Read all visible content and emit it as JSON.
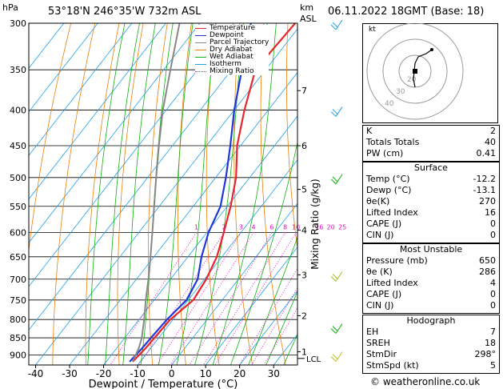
{
  "header": {
    "hpa_unit": "hPa",
    "location": "53°18'N  246°35'W  732m  ASL",
    "km_unit": "km",
    "asl_label": "ASL",
    "datetime": "06.11.2022  18GMT  (Base: 18)"
  },
  "legend": [
    {
      "label": "Temperature",
      "color": "#e8262c"
    },
    {
      "label": "Dewpoint",
      "color": "#2038d8"
    },
    {
      "label": "Parcel Trajectory",
      "color": "#888888"
    },
    {
      "label": "Dry Adiabat",
      "color": "#e8800a"
    },
    {
      "label": "Wet Adiabat",
      "color": "#10b010"
    },
    {
      "label": "Isotherm",
      "color": "#20a0e8"
    },
    {
      "label": "Mixing Ratio",
      "color": "#e010c0",
      "dotted": true
    }
  ],
  "chart_data": {
    "type": "line",
    "xlabel": "Dewpoint / Temperature (°C)",
    "ylabel_right": "Mixing Ratio (g/kg)",
    "xlim": [
      -42,
      37
    ],
    "pressure_range": [
      300,
      930
    ],
    "pressure_levels": [
      300,
      350,
      400,
      450,
      500,
      550,
      600,
      650,
      700,
      750,
      800,
      850,
      900
    ],
    "x_ticks": [
      -40,
      -30,
      -20,
      -10,
      0,
      10,
      20,
      30
    ],
    "km_ticks": [
      {
        "km": "1",
        "p": 890
      },
      {
        "km": "2",
        "p": 790
      },
      {
        "km": "3",
        "p": 690
      },
      {
        "km": "4",
        "p": 595
      },
      {
        "km": "5",
        "p": 520
      },
      {
        "km": "6",
        "p": 450
      },
      {
        "km": "7",
        "p": 375
      }
    ],
    "lcl_label": "LCL",
    "lcl_p": 910,
    "mixing_ratio_labels": [
      "1",
      "2",
      "3",
      "4",
      "6",
      "8",
      "10",
      "16",
      "20",
      "25"
    ],
    "mixing_ratios": [
      1,
      2,
      3,
      4,
      6,
      8,
      10,
      16,
      20,
      25
    ],
    "series": [
      {
        "name": "Temperature",
        "color": "#e8262c",
        "p": [
          920,
          880,
          850,
          800,
          750,
          700,
          650,
          600,
          550,
          500,
          450,
          400,
          350,
          300
        ],
        "t": [
          -12.2,
          -11.5,
          -11.3,
          -10.8,
          -8.5,
          -9.5,
          -11.5,
          -15,
          -19,
          -24,
          -31,
          -37,
          -43,
          -42
        ]
      },
      {
        "name": "Dewpoint",
        "color": "#2038d8",
        "p": [
          920,
          880,
          850,
          800,
          750,
          700,
          650,
          600,
          550,
          500,
          450,
          400,
          350,
          300
        ],
        "t": [
          -13.1,
          -12.5,
          -12.3,
          -11.8,
          -10.5,
          -12,
          -16,
          -19.5,
          -22,
          -27,
          -33,
          -40,
          -47,
          -55
        ]
      },
      {
        "name": "Parcel Trajectory",
        "color": "#888888",
        "p": [
          920,
          880,
          850,
          800,
          750,
          700,
          650,
          600,
          550,
          500,
          450,
          400,
          350,
          300
        ],
        "t": [
          -12.2,
          -13.5,
          -15,
          -18.5,
          -22.5,
          -26.5,
          -31,
          -36,
          -41.5,
          -47.5,
          -54,
          -61,
          -68,
          -76
        ]
      }
    ]
  },
  "hodograph": {
    "unit_label": "kt",
    "ring_labels": [
      "40",
      "30",
      "20"
    ]
  },
  "indices": [
    {
      "label": "K",
      "value": "2"
    },
    {
      "label": "Totals Totals",
      "value": "40"
    },
    {
      "label": "PW (cm)",
      "value": "0.41"
    }
  ],
  "surface": {
    "title": "Surface",
    "rows": [
      {
        "label": "Temp (°C)",
        "value": "-12.2"
      },
      {
        "label": "Dewp (°C)",
        "value": "-13.1"
      },
      {
        "label": "θe(K)",
        "value": "270"
      },
      {
        "label": "Lifted Index",
        "value": "16"
      },
      {
        "label": "CAPE (J)",
        "value": "0"
      },
      {
        "label": "CIN (J)",
        "value": "0"
      }
    ]
  },
  "most_unstable": {
    "title": "Most Unstable",
    "rows": [
      {
        "label": "Pressure (mb)",
        "value": "650"
      },
      {
        "label": "θe (K)",
        "value": "286"
      },
      {
        "label": "Lifted Index",
        "value": "4"
      },
      {
        "label": "CAPE (J)",
        "value": "0"
      },
      {
        "label": "CIN (J)",
        "value": "0"
      }
    ]
  },
  "hodograph_table": {
    "title": "Hodograph",
    "rows": [
      {
        "label": "EH",
        "value": "7"
      },
      {
        "label": "SREH",
        "value": "18"
      },
      {
        "label": "StmDir",
        "value": "298°"
      },
      {
        "label": "StmSpd (kt)",
        "value": "5"
      }
    ]
  },
  "footer": {
    "copyright": "© weatheronline.co.uk"
  }
}
